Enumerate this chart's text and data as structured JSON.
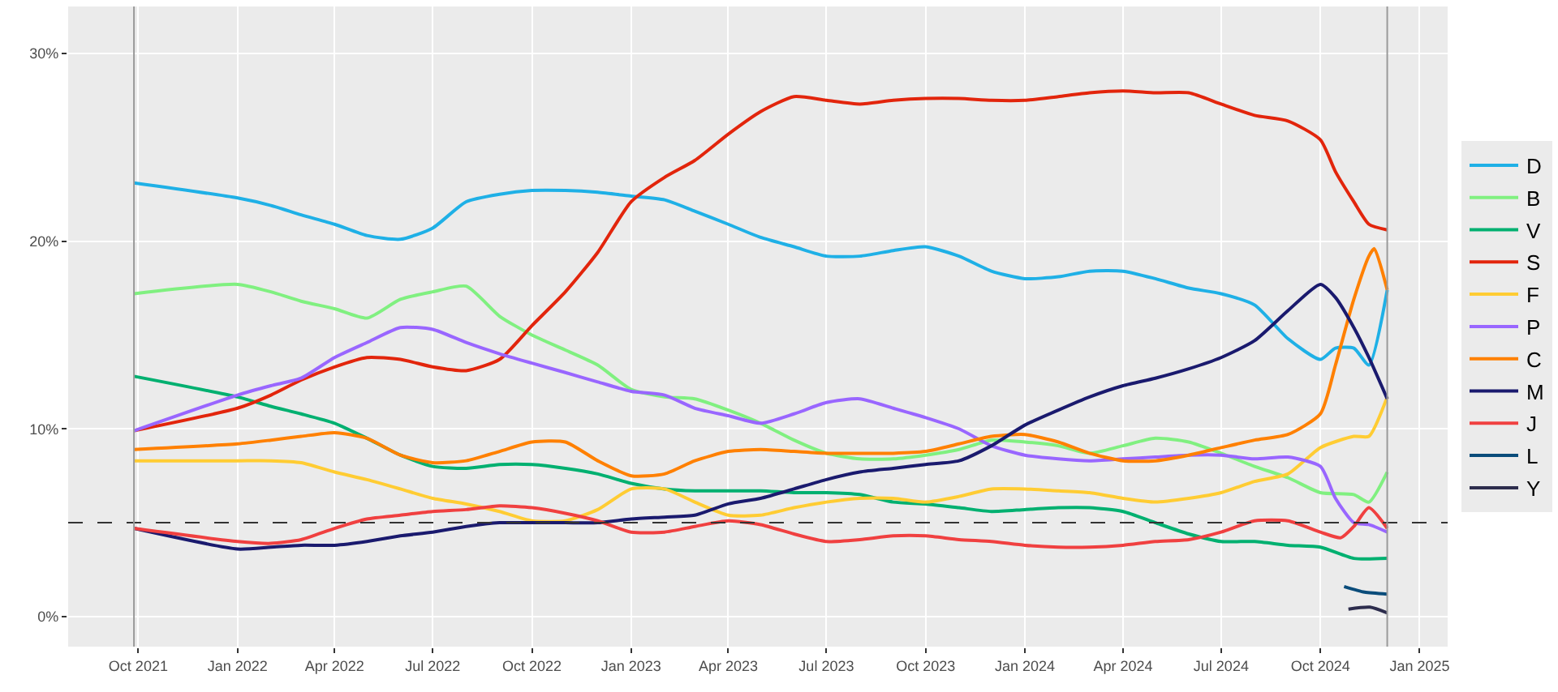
{
  "chart_data": {
    "type": "line",
    "xlim": [
      "2021-07-28",
      "2025-01-27"
    ],
    "xticks": [
      {
        "value": "2021-10-01",
        "label": "Oct 2021"
      },
      {
        "value": "2022-01-01",
        "label": "Jan 2022"
      },
      {
        "value": "2022-04-01",
        "label": "Apr 2022"
      },
      {
        "value": "2022-07-01",
        "label": "Jul 2022"
      },
      {
        "value": "2022-10-01",
        "label": "Oct 2022"
      },
      {
        "value": "2023-01-01",
        "label": "Jan 2023"
      },
      {
        "value": "2023-04-01",
        "label": "Apr 2023"
      },
      {
        "value": "2023-07-01",
        "label": "Jul 2023"
      },
      {
        "value": "2023-10-01",
        "label": "Oct 2023"
      },
      {
        "value": "2024-01-01",
        "label": "Jan 2024"
      },
      {
        "value": "2024-04-01",
        "label": "Apr 2024"
      },
      {
        "value": "2024-07-01",
        "label": "Jul 2024"
      },
      {
        "value": "2024-10-01",
        "label": "Oct 2024"
      },
      {
        "value": "2025-01-01",
        "label": "Jan 2025"
      }
    ],
    "ylim": [
      -1.6,
      32.5
    ],
    "yticks": [
      {
        "value": 0,
        "label": "0%"
      },
      {
        "value": 10,
        "label": "10%"
      },
      {
        "value": 20,
        "label": "20%"
      },
      {
        "value": 30,
        "label": "30%"
      }
    ],
    "grid": true,
    "legend": "right",
    "marker": "none",
    "line_style": "solid",
    "ref_lines": [
      {
        "axis": "y",
        "value": 5,
        "label": null,
        "color": "#333333",
        "line_style": "dashed"
      },
      {
        "axis": "x",
        "value": "2021-09-27",
        "label": null,
        "color": "#999999",
        "line_style": "solid"
      },
      {
        "axis": "x",
        "value": "2024-12-02",
        "label": null,
        "color": "#999999",
        "line_style": "solid"
      }
    ],
    "series": [
      {
        "name": "D",
        "color": "#1fb0e6",
        "x": [
          "2021-09-27",
          "2022-01",
          "2022-02",
          "2022-03",
          "2022-04",
          "2022-05",
          "2022-06",
          "2022-07",
          "2022-08",
          "2022-09",
          "2022-10",
          "2022-11",
          "2022-12",
          "2023-01",
          "2023-02",
          "2023-03",
          "2023-04",
          "2023-05",
          "2023-06",
          "2023-07",
          "2023-08",
          "2023-09",
          "2023-10",
          "2023-11",
          "2023-12",
          "2024-01",
          "2024-02",
          "2024-03",
          "2024-04",
          "2024-05",
          "2024-06",
          "2024-07",
          "2024-08",
          "2024-09",
          "2024-10",
          "2024-10-15",
          "2024-11",
          "2024-11-15",
          "2024-12-02"
        ],
        "values": [
          23.1,
          22.3,
          21.9,
          21.4,
          20.9,
          20.3,
          20.1,
          20.7,
          22.1,
          22.5,
          22.7,
          22.7,
          22.6,
          22.4,
          22.2,
          21.6,
          20.9,
          20.2,
          19.7,
          19.2,
          19.2,
          19.5,
          19.7,
          19.2,
          18.4,
          18.0,
          18.1,
          18.4,
          18.4,
          18.0,
          17.5,
          17.2,
          16.6,
          14.8,
          13.7,
          14.3,
          14.3,
          13.4,
          17.4
        ]
      },
      {
        "name": "B",
        "color": "#80f080",
        "x": [
          "2021-09-27",
          "2022-01",
          "2022-02",
          "2022-03",
          "2022-04",
          "2022-05",
          "2022-06",
          "2022-07",
          "2022-08",
          "2022-09",
          "2022-10",
          "2022-11",
          "2022-12",
          "2023-01",
          "2023-02",
          "2023-03",
          "2023-04",
          "2023-05",
          "2023-06",
          "2023-07",
          "2023-08",
          "2023-09",
          "2023-10",
          "2023-11",
          "2023-12",
          "2024-01",
          "2024-02",
          "2024-03",
          "2024-04",
          "2024-05",
          "2024-06",
          "2024-07",
          "2024-08",
          "2024-09",
          "2024-10",
          "2024-11",
          "2024-11-15",
          "2024-12-02"
        ],
        "values": [
          17.2,
          17.7,
          17.3,
          16.8,
          16.4,
          15.9,
          16.9,
          17.3,
          17.6,
          16.0,
          15.0,
          14.2,
          13.4,
          12.1,
          11.7,
          11.6,
          11.0,
          10.3,
          9.4,
          8.7,
          8.4,
          8.4,
          8.6,
          8.9,
          9.4,
          9.3,
          9.1,
          8.7,
          9.1,
          9.5,
          9.3,
          8.7,
          8.0,
          7.4,
          6.6,
          6.5,
          6.1,
          7.7
        ]
      },
      {
        "name": "V",
        "color": "#00b070",
        "x": [
          "2021-09-27",
          "2022-01",
          "2022-02",
          "2022-03",
          "2022-04",
          "2022-05",
          "2022-06",
          "2022-07",
          "2022-08",
          "2022-09",
          "2022-10",
          "2022-11",
          "2022-12",
          "2023-01",
          "2023-02",
          "2023-03",
          "2023-04",
          "2023-05",
          "2023-06",
          "2023-07",
          "2023-08",
          "2023-09",
          "2023-10",
          "2023-11",
          "2023-12",
          "2024-01",
          "2024-02",
          "2024-03",
          "2024-04",
          "2024-05",
          "2024-06",
          "2024-07",
          "2024-08",
          "2024-09",
          "2024-10",
          "2024-11",
          "2024-12-02"
        ],
        "values": [
          12.8,
          11.7,
          11.2,
          10.8,
          10.3,
          9.5,
          8.6,
          8.0,
          7.9,
          8.1,
          8.1,
          7.9,
          7.6,
          7.1,
          6.8,
          6.7,
          6.7,
          6.7,
          6.6,
          6.6,
          6.5,
          6.1,
          6.0,
          5.8,
          5.6,
          5.7,
          5.8,
          5.8,
          5.6,
          5.0,
          4.4,
          4.0,
          4.0,
          3.8,
          3.7,
          3.1,
          3.1
        ]
      },
      {
        "name": "S",
        "color": "#e2250c",
        "x": [
          "2021-09-27",
          "2022-01",
          "2022-02",
          "2022-03",
          "2022-04",
          "2022-05",
          "2022-06",
          "2022-07",
          "2022-08",
          "2022-09",
          "2022-10",
          "2022-11",
          "2022-12",
          "2023-01",
          "2023-02",
          "2023-03",
          "2023-04",
          "2023-05",
          "2023-06",
          "2023-07",
          "2023-08",
          "2023-09",
          "2023-10",
          "2023-11",
          "2023-12",
          "2024-01",
          "2024-02",
          "2024-03",
          "2024-04",
          "2024-05",
          "2024-06",
          "2024-07",
          "2024-08",
          "2024-09",
          "2024-10",
          "2024-10-15",
          "2024-11",
          "2024-11-15",
          "2024-12-02"
        ],
        "values": [
          9.9,
          11.1,
          11.8,
          12.6,
          13.3,
          13.8,
          13.7,
          13.3,
          13.1,
          13.7,
          15.5,
          17.3,
          19.4,
          22.1,
          23.4,
          24.3,
          25.7,
          26.9,
          27.7,
          27.5,
          27.3,
          27.5,
          27.6,
          27.6,
          27.5,
          27.5,
          27.7,
          27.9,
          28.0,
          27.9,
          27.9,
          27.3,
          26.7,
          26.4,
          25.4,
          23.7,
          22.1,
          20.9,
          20.6
        ]
      },
      {
        "name": "F",
        "color": "#ffcc33",
        "x": [
          "2021-09-27",
          "2022-01",
          "2022-02",
          "2022-03",
          "2022-04",
          "2022-05",
          "2022-06",
          "2022-07",
          "2022-08",
          "2022-09",
          "2022-10",
          "2022-11",
          "2022-12",
          "2023-01",
          "2023-02",
          "2023-03",
          "2023-04",
          "2023-05",
          "2023-06",
          "2023-07",
          "2023-08",
          "2023-09",
          "2023-10",
          "2023-11",
          "2023-12",
          "2024-01",
          "2024-02",
          "2024-03",
          "2024-04",
          "2024-05",
          "2024-06",
          "2024-07",
          "2024-08",
          "2024-09",
          "2024-10",
          "2024-11",
          "2024-11-15",
          "2024-12-02"
        ],
        "values": [
          8.3,
          8.3,
          8.3,
          8.2,
          7.7,
          7.3,
          6.8,
          6.3,
          6.0,
          5.6,
          5.1,
          5.1,
          5.7,
          6.8,
          6.8,
          6.1,
          5.4,
          5.4,
          5.8,
          6.1,
          6.3,
          6.3,
          6.1,
          6.4,
          6.8,
          6.8,
          6.7,
          6.6,
          6.3,
          6.1,
          6.3,
          6.6,
          7.2,
          7.6,
          9.0,
          9.6,
          9.6,
          11.7
        ]
      },
      {
        "name": "P",
        "color": "#9966ff",
        "x": [
          "2021-09-27",
          "2022-01",
          "2022-02",
          "2022-03",
          "2022-04",
          "2022-05",
          "2022-06",
          "2022-07",
          "2022-08",
          "2022-09",
          "2022-10",
          "2022-11",
          "2022-12",
          "2023-01",
          "2023-02",
          "2023-03",
          "2023-04",
          "2023-05",
          "2023-06",
          "2023-07",
          "2023-08",
          "2023-09",
          "2023-10",
          "2023-11",
          "2023-12",
          "2024-01",
          "2024-02",
          "2024-03",
          "2024-04",
          "2024-05",
          "2024-06",
          "2024-07",
          "2024-08",
          "2024-09",
          "2024-10",
          "2024-10-15",
          "2024-11",
          "2024-11-15",
          "2024-12-02"
        ],
        "values": [
          9.9,
          11.8,
          12.3,
          12.7,
          13.8,
          14.6,
          15.4,
          15.3,
          14.6,
          14.0,
          13.5,
          13.0,
          12.5,
          12.0,
          11.8,
          11.1,
          10.7,
          10.3,
          10.8,
          11.4,
          11.6,
          11.1,
          10.6,
          10.0,
          9.1,
          8.6,
          8.4,
          8.3,
          8.4,
          8.5,
          8.6,
          8.6,
          8.4,
          8.5,
          8.0,
          6.3,
          5.0,
          4.9,
          4.5
        ]
      },
      {
        "name": "C",
        "color": "#ff8000",
        "x": [
          "2021-09-27",
          "2022-01",
          "2022-02",
          "2022-03",
          "2022-04",
          "2022-05",
          "2022-06",
          "2022-07",
          "2022-08",
          "2022-09",
          "2022-10",
          "2022-11",
          "2022-12",
          "2023-01",
          "2023-02",
          "2023-03",
          "2023-04",
          "2023-05",
          "2023-06",
          "2023-07",
          "2023-08",
          "2023-09",
          "2023-10",
          "2023-11",
          "2023-12",
          "2024-01",
          "2024-02",
          "2024-03",
          "2024-04",
          "2024-05",
          "2024-06",
          "2024-07",
          "2024-08",
          "2024-09",
          "2024-10",
          "2024-10-15",
          "2024-11",
          "2024-11-15",
          "2024-11-20",
          "2024-12-02"
        ],
        "values": [
          8.9,
          9.2,
          9.4,
          9.6,
          9.8,
          9.5,
          8.6,
          8.2,
          8.3,
          8.8,
          9.3,
          9.3,
          8.3,
          7.5,
          7.6,
          8.3,
          8.8,
          8.9,
          8.8,
          8.7,
          8.7,
          8.7,
          8.8,
          9.2,
          9.6,
          9.7,
          9.3,
          8.7,
          8.3,
          8.3,
          8.6,
          9.0,
          9.4,
          9.7,
          10.8,
          13.4,
          16.9,
          19.2,
          19.6,
          17.4
        ]
      },
      {
        "name": "M",
        "color": "#1a1a6e",
        "x": [
          "2021-09-27",
          "2022-01",
          "2022-02",
          "2022-03",
          "2022-04",
          "2022-05",
          "2022-06",
          "2022-07",
          "2022-08",
          "2022-09",
          "2022-10",
          "2022-11",
          "2022-12",
          "2023-01",
          "2023-02",
          "2023-03",
          "2023-04",
          "2023-05",
          "2023-06",
          "2023-07",
          "2023-08",
          "2023-09",
          "2023-10",
          "2023-11",
          "2023-12",
          "2024-01",
          "2024-02",
          "2024-03",
          "2024-04",
          "2024-05",
          "2024-06",
          "2024-07",
          "2024-08",
          "2024-09",
          "2024-10",
          "2024-10-15",
          "2024-11",
          "2024-11-15",
          "2024-12-02"
        ],
        "values": [
          4.7,
          3.6,
          3.7,
          3.8,
          3.8,
          4.0,
          4.3,
          4.5,
          4.8,
          5.0,
          5.0,
          5.0,
          5.0,
          5.2,
          5.3,
          5.4,
          6.0,
          6.3,
          6.8,
          7.3,
          7.7,
          7.9,
          8.1,
          8.3,
          9.1,
          10.2,
          11.0,
          11.7,
          12.3,
          12.7,
          13.2,
          13.8,
          14.7,
          16.3,
          17.7,
          17.0,
          15.4,
          13.8,
          11.6
        ]
      },
      {
        "name": "J",
        "color": "#f04040",
        "x": [
          "2021-09-27",
          "2022-01",
          "2022-02",
          "2022-03",
          "2022-04",
          "2022-05",
          "2022-06",
          "2022-07",
          "2022-08",
          "2022-09",
          "2022-10",
          "2022-11",
          "2022-12",
          "2023-01",
          "2023-02",
          "2023-03",
          "2023-04",
          "2023-05",
          "2023-06",
          "2023-07",
          "2023-08",
          "2023-09",
          "2023-10",
          "2023-11",
          "2023-12",
          "2024-01",
          "2024-02",
          "2024-03",
          "2024-04",
          "2024-05",
          "2024-06",
          "2024-07",
          "2024-08",
          "2024-09",
          "2024-10",
          "2024-10-20",
          "2024-11",
          "2024-11-15",
          "2024-12-02"
        ],
        "values": [
          4.7,
          4.0,
          3.9,
          4.1,
          4.7,
          5.2,
          5.4,
          5.6,
          5.7,
          5.9,
          5.8,
          5.5,
          5.1,
          4.5,
          4.5,
          4.8,
          5.1,
          4.9,
          4.4,
          4.0,
          4.1,
          4.3,
          4.3,
          4.1,
          4.0,
          3.8,
          3.7,
          3.7,
          3.8,
          4.0,
          4.1,
          4.5,
          5.1,
          5.1,
          4.5,
          4.2,
          4.8,
          5.8,
          4.7
        ]
      },
      {
        "name": "L",
        "color": "#0a4c7a",
        "x": [
          "2024-10-23",
          "2024-11-11",
          "2024-12-02"
        ],
        "values": [
          1.6,
          1.3,
          1.2
        ]
      },
      {
        "name": "Y",
        "color": "#2d2d4d",
        "x": [
          "2024-10-27",
          "2024-11-16",
          "2024-12-02"
        ],
        "values": [
          0.4,
          0.5,
          0.2
        ]
      }
    ]
  }
}
